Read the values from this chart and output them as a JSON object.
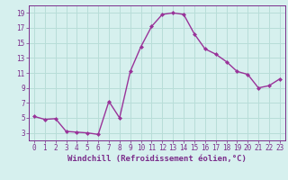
{
  "x": [
    0,
    1,
    2,
    3,
    4,
    5,
    6,
    7,
    8,
    9,
    10,
    11,
    12,
    13,
    14,
    15,
    16,
    17,
    18,
    19,
    20,
    21,
    22,
    23
  ],
  "y": [
    5.2,
    4.8,
    4.9,
    3.2,
    3.1,
    3.0,
    2.8,
    7.2,
    5.0,
    11.2,
    14.5,
    17.2,
    18.8,
    19.0,
    18.8,
    16.2,
    14.2,
    13.5,
    12.5,
    11.2,
    10.8,
    9.0,
    9.3,
    10.2
  ],
  "line_color": "#993399",
  "marker": "D",
  "marker_size": 2.0,
  "line_width": 1.0,
  "xlabel": "Windchill (Refroidissement éolien,°C)",
  "xlabel_fontsize": 6.5,
  "xlim": [
    -0.5,
    23.5
  ],
  "ylim": [
    2.0,
    20.0
  ],
  "yticks": [
    3,
    5,
    7,
    9,
    11,
    13,
    15,
    17,
    19
  ],
  "xtick_labels": [
    "0",
    "1",
    "2",
    "3",
    "4",
    "5",
    "6",
    "7",
    "8",
    "9",
    "10",
    "11",
    "12",
    "13",
    "14",
    "15",
    "16",
    "17",
    "18",
    "19",
    "20",
    "21",
    "22",
    "23"
  ],
  "background_color": "#d6f0ee",
  "grid_color": "#b8ddd8",
  "tick_fontsize": 5.5,
  "label_color": "#7b2d8b",
  "spine_color": "#7b2d8b"
}
